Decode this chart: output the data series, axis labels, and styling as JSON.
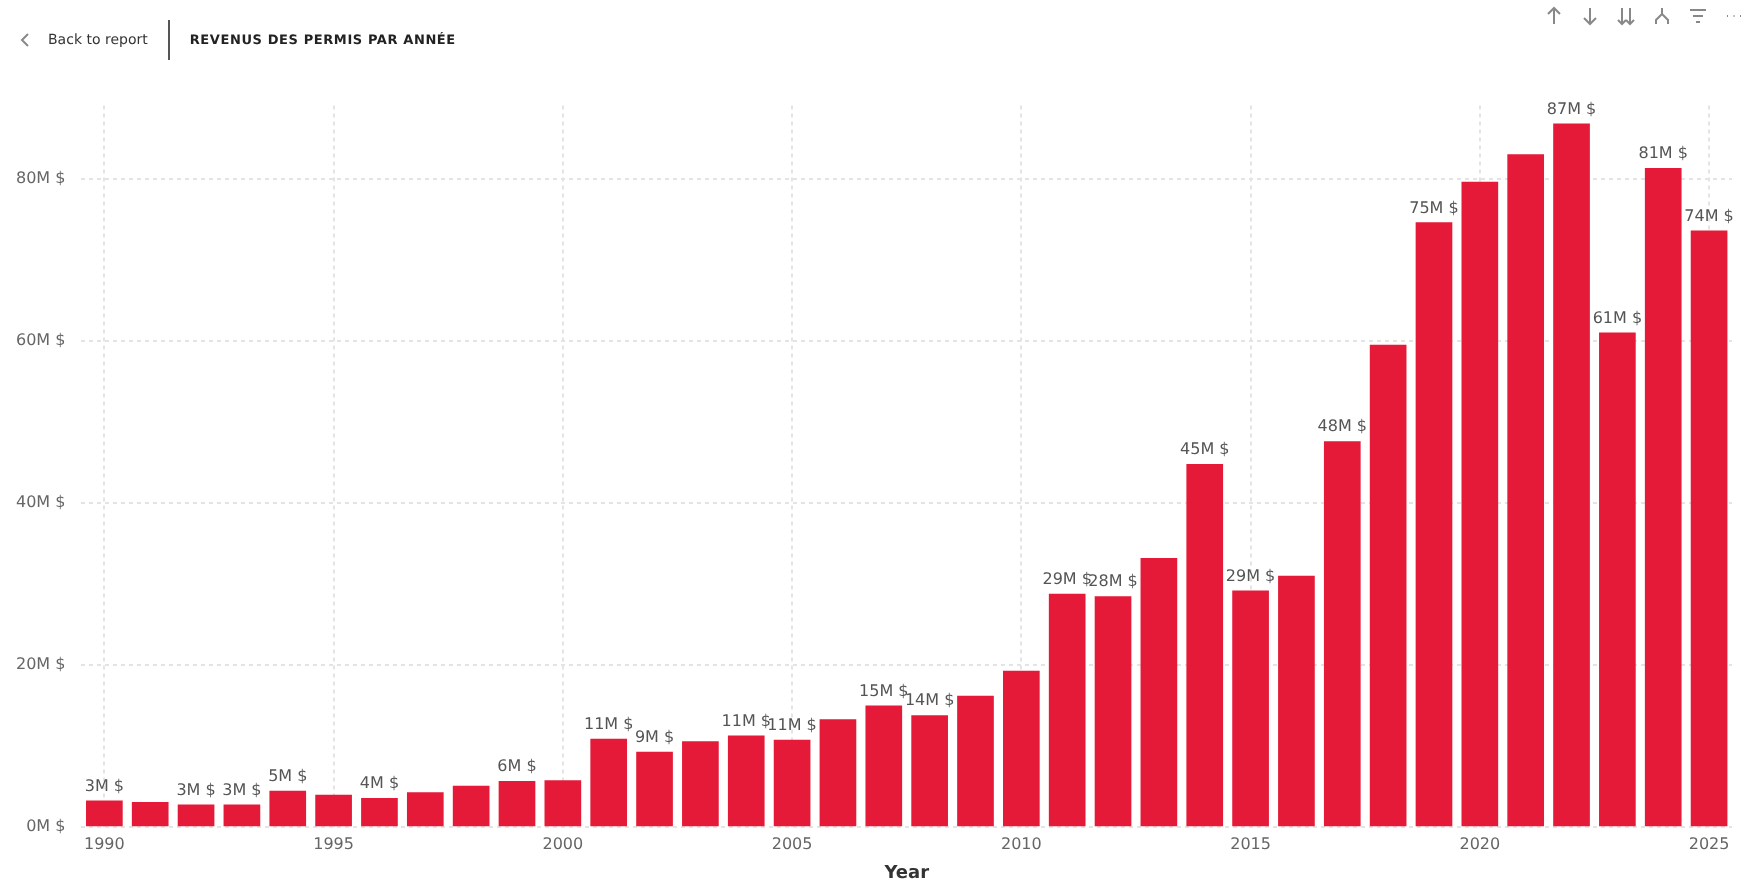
{
  "chart_data": {
    "type": "bar",
    "title": "REVENUS DES PERMIS PAR ANNÉE",
    "xlabel": "Year",
    "annotations": [
      "Back to report"
    ],
    "categories": [
      "1990",
      null,
      null,
      null,
      null,
      "1995",
      null,
      null,
      null,
      null,
      "2000",
      null,
      null,
      null,
      null,
      "2005",
      null,
      null,
      null,
      null,
      "2010",
      null,
      null,
      null,
      null,
      "2015",
      null,
      null,
      null,
      null,
      "2020",
      null,
      null,
      null,
      null,
      "2025"
    ],
    "values": [
      3.3,
      3.1,
      2.8,
      2.8,
      4.5,
      4.0,
      3.6,
      4.3,
      5.1,
      5.7,
      5.8,
      10.9,
      9.3,
      10.6,
      11.3,
      10.8,
      13.3,
      15.0,
      13.8,
      16.2,
      19.3,
      28.8,
      28.5,
      33.2,
      44.8,
      29.2,
      31.0,
      47.6,
      59.5,
      74.6,
      79.6,
      83.0,
      86.8,
      61.0,
      81.3,
      73.6
    ],
    "value_labels": [
      "3M $",
      null,
      "3M $",
      "3M $",
      "5M $",
      null,
      "4M $",
      null,
      null,
      "6M $",
      null,
      "11M $",
      "9M $",
      null,
      "11M $",
      "11M $",
      null,
      "15M $",
      "14M $",
      null,
      null,
      "29M $",
      "28M $",
      null,
      "45M $",
      "29M $",
      null,
      "48M $",
      null,
      "75M $",
      null,
      null,
      "87M $",
      "61M $",
      "81M $",
      "74M $"
    ],
    "color": "#e41a38",
    "ylim": [
      0,
      89
    ],
    "yticks": [
      {
        "value": 0,
        "label": "0M $"
      },
      {
        "value": 20,
        "label": "20M $"
      },
      {
        "value": 40,
        "label": "40M $"
      },
      {
        "value": 60,
        "label": "60M $"
      },
      {
        "value": 80,
        "label": "80M $"
      }
    ],
    "grid": true,
    "legend": false
  }
}
